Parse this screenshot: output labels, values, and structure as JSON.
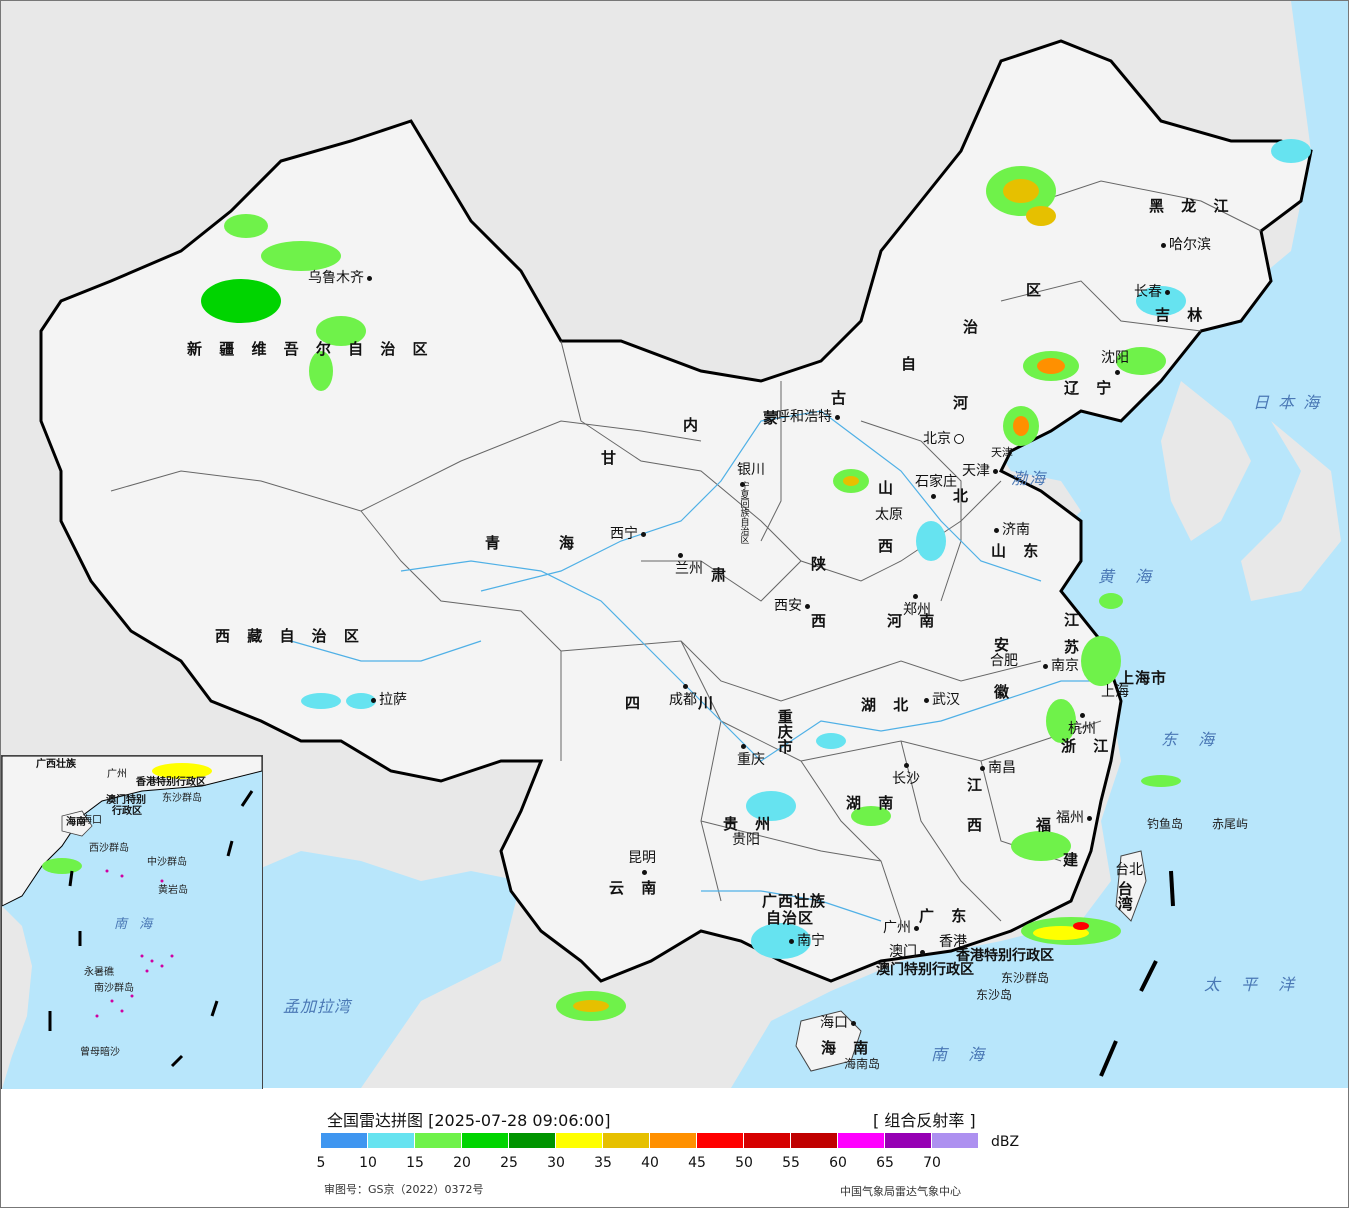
{
  "colors": {
    "sea": "#b8e6fb",
    "land_china": "#f4f4f4",
    "land_other": "#e8e8e8",
    "border": "#000000",
    "river": "#4fb0e6"
  },
  "map": {
    "provinces": {
      "xinjiang": "新 疆 维 吾 尔 自 治 区",
      "tibet": "西 藏 自 治 区",
      "qinghai_1": "青",
      "qinghai_2": "海",
      "gansu": "甘",
      "neimenggu_1": "内",
      "neimenggu_2": "蒙",
      "neimenggu_3": "古",
      "neimenggu_4": "自",
      "neimenggu_5": "治",
      "neimenggu_6": "区",
      "heilongjiang": "黑 龙 江",
      "jilin": "吉 林",
      "liaoning": "辽 宁",
      "hebei_1": "河",
      "hebei_2": "北",
      "shanxi_1": "山",
      "shanxi_2": "西",
      "shandong": "山 东",
      "henan": "河 南",
      "shaanxi_1": "陕",
      "shaanxi_2": "西",
      "ningxia": "宁夏回族自治区",
      "sichuan_1": "四",
      "sichuan_2": "川",
      "chongqing": "重庆市",
      "hubei": "湖 北",
      "hunan": "湖 南",
      "anhui_1": "安",
      "anhui_2": "徽",
      "jiangsu_1": "江",
      "jiangsu_2": "苏",
      "zhejiang": "浙 江",
      "jiangxi_1": "江",
      "jiangxi_2": "西",
      "fujian_1": "福",
      "fujian_2": "建",
      "guizhou": "贵 州",
      "yunnan": "云 南",
      "guangxi_1": "广西壮族",
      "guangxi_2": "自治区",
      "guangdong": "广 东",
      "hainan": "海 南",
      "taiwan": "台湾",
      "shanghai": "上海市",
      "gansu_3": "肃",
      "hk_sar": "香港特别行政区",
      "macau_sar": "澳门特别行政区"
    },
    "cities": {
      "urumqi": "乌鲁木齐",
      "lhasa": "拉萨",
      "xining": "西宁",
      "lanzhou": "兰州",
      "yinchuan": "银川",
      "hohhot": "呼和浩特",
      "beijing": "北京",
      "tianjin": "天津",
      "shijiazhuang": "石家庄",
      "taiyuan": "太原",
      "jinan": "济南",
      "zhengzhou": "郑州",
      "xian": "西安",
      "chengdu": "成都",
      "chongqing": "重庆",
      "wuhan": "武汉",
      "hefei": "合肥",
      "nanjing": "南京",
      "hangzhou": "杭州",
      "changsha": "长沙",
      "nanchang": "南昌",
      "fuzhou": "福州",
      "guiyang": "贵阳",
      "kunming": "昆明",
      "nanning": "南宁",
      "guangzhou": "广州",
      "macau": "澳门",
      "hongkong": "香港",
      "haikou": "海口",
      "taibei": "台北",
      "shenyang": "沈阳",
      "changchun": "长春",
      "harbin": "哈尔滨",
      "shanghai_city": "上海",
      "tianjin_small": "天津"
    },
    "seas": {
      "bohai": "渤海",
      "huanghai": "黄 海",
      "donghai": "东 海",
      "nanhai": "南 海",
      "taipingyang": "太 平 洋",
      "ribenhai": "日 本 海",
      "mengjialawan": "孟加拉湾"
    },
    "islands": {
      "diaoyudao": "钓鱼岛",
      "chiweiyu": "赤尾屿",
      "dongshaqundao": "东沙群岛",
      "dongshadao": "东沙岛",
      "hainandao": "海南岛"
    },
    "inset": {
      "guangxi": "广西壮族",
      "guangzhou": "广州",
      "macau_sar": "澳门特别",
      "macau_sar_2": "行政区",
      "hk_sar": "香港特别行政区",
      "dongsha": "东沙群岛",
      "hainan": "海南",
      "haikou": "海口",
      "xisha": "西沙群岛",
      "zhongsha": "中沙群岛",
      "huangyan": "黄岩岛",
      "yongshu": "永暑礁",
      "nansha": "南沙群岛",
      "zengmu": "曾母暗沙",
      "nanhai": "南 海"
    }
  },
  "legend": {
    "title": "全国雷达拼图 [2025-07-28 09:06:00]",
    "product": "[ 组合反射率 ]",
    "unit": "dBZ",
    "review_number": "审图号：GS京（2022）0372号",
    "organization": "中国气象局雷达气象中心",
    "scale_colors": [
      "#3f96f0",
      "#66e3f0",
      "#6ff24a",
      "#00d400",
      "#009400",
      "#ffff00",
      "#e6c000",
      "#ff9000",
      "#ff0000",
      "#d60000",
      "#c00000",
      "#ff00ff",
      "#9600b4",
      "#ad90f0"
    ],
    "ticks": [
      "5",
      "10",
      "15",
      "20",
      "25",
      "30",
      "35",
      "40",
      "45",
      "50",
      "55",
      "60",
      "65",
      "70"
    ]
  }
}
